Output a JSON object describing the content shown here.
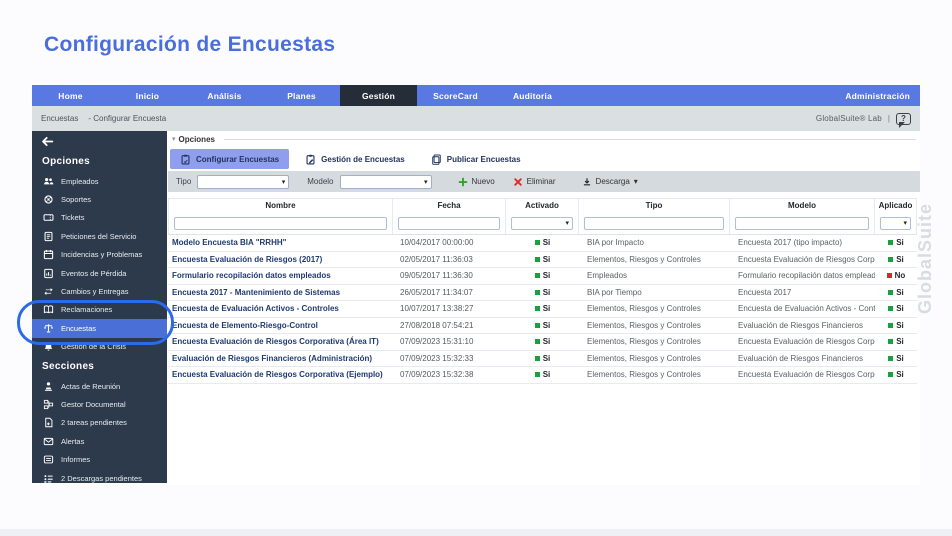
{
  "page_title": "Configuración de Encuestas",
  "colors": {
    "accent": "#4a6edb",
    "nav": "#5a78e2",
    "navActive": "#252d38",
    "sidebar": "#2d3a4b",
    "highlight": "#4a70d8",
    "tabActive": "#8f9fee",
    "toolbar": "#d5dade",
    "crumb": "#dadfe2",
    "green": "#1aa13f",
    "red": "#d42a2a",
    "link": "#1e3a70",
    "ring": "#2b6be8",
    "watermark": "#d9dcdf"
  },
  "nav": {
    "items": [
      {
        "label": "Home"
      },
      {
        "label": "Inicio"
      },
      {
        "label": "Análisis"
      },
      {
        "label": "Planes"
      },
      {
        "label": "Gestión",
        "state": "active"
      },
      {
        "label": "ScoreCard"
      },
      {
        "label": "Auditoria"
      },
      {
        "label": "Administración"
      }
    ]
  },
  "breadcrumb": {
    "section": "Encuestas",
    "current": "- Configurar Encuesta",
    "brand": "GlobalSuite® Lab",
    "separator": "|",
    "help_icon": "help-bubble-icon"
  },
  "sidebar": {
    "back_icon": "back-arrow-icon",
    "sections": [
      {
        "title": "Opciones",
        "items": [
          {
            "label": "Empleados",
            "icon": "people"
          },
          {
            "label": "Soportes",
            "icon": "lifebuoy"
          },
          {
            "label": "Tickets",
            "icon": "ticket"
          },
          {
            "label": "Peticiones del Servicio",
            "icon": "doc-lines"
          },
          {
            "label": "Incidencias y Problemas",
            "icon": "calendar"
          },
          {
            "label": "Eventos de Pérdida",
            "icon": "doc-chart"
          },
          {
            "label": "Cambios y Entregas",
            "icon": "swap-arrows"
          },
          {
            "label": "Reclamaciones",
            "icon": "book"
          },
          {
            "label": "Encuestas",
            "icon": "scales",
            "state": "active"
          },
          {
            "label": "Gestión de la Crisis",
            "icon": "bell"
          }
        ]
      },
      {
        "title": "Secciones",
        "items": [
          {
            "label": "Actas de Reunión",
            "icon": "stamp"
          },
          {
            "label": "Gestor Documental",
            "icon": "doc-tree"
          },
          {
            "label": "2 tareas pendientes",
            "icon": "doc-plus"
          },
          {
            "label": "Alertas",
            "icon": "mail"
          },
          {
            "label": "Informes",
            "icon": "report"
          },
          {
            "label": "2 Descargas pendientes",
            "icon": "dotted-list"
          }
        ]
      }
    ]
  },
  "panel": {
    "title": "Opciones"
  },
  "tabs": [
    {
      "label": "Configurar Encuestas",
      "icon": "clipboard-check",
      "state": "active"
    },
    {
      "label": "Gestión de Encuestas",
      "icon": "clipboard-edit"
    },
    {
      "label": "Publicar Encuestas",
      "icon": "clipboard-copy"
    }
  ],
  "toolbar": {
    "tipo_label": "Tipo",
    "modelo_label": "Modelo",
    "nuevo_label": "Nuevo",
    "eliminar_label": "Eliminar",
    "descarga_label": "Descarga",
    "caret": "▾"
  },
  "table": {
    "columns": [
      "Nombre",
      "Fecha",
      "Activado",
      "Tipo",
      "Modelo",
      "Aplicado"
    ],
    "rows": [
      {
        "nombre": "Modelo Encuesta BIA \"RRHH\"",
        "fecha": "10/04/2017 00:00:00",
        "activado": "Si",
        "activado_state": "ok",
        "tipo": "BIA por Impacto",
        "modelo": "Encuesta 2017 (tipo impacto)",
        "aplicado": "Si",
        "aplicado_state": "ok"
      },
      {
        "nombre": "Encuesta Evaluación de Riesgos (2017)",
        "fecha": "02/05/2017 11:36:03",
        "activado": "Si",
        "activado_state": "ok",
        "tipo": "Elementos, Riesgos y Controles",
        "modelo": "Encuesta Evaluación de Riesgos Corporativa",
        "aplicado": "Si",
        "aplicado_state": "ok"
      },
      {
        "nombre": "Formulario recopilación datos empleados",
        "fecha": "09/05/2017 11:36:30",
        "activado": "Si",
        "activado_state": "ok",
        "tipo": "Empleados",
        "modelo": "Formulario recopilación datos empleados",
        "aplicado": "No",
        "aplicado_state": "no"
      },
      {
        "nombre": "Encuesta 2017 - Mantenimiento de Sistemas",
        "fecha": "26/05/2017 11:34:07",
        "activado": "Si",
        "activado_state": "ok",
        "tipo": "BIA por Tiempo",
        "modelo": "Encuesta 2017",
        "aplicado": "Si",
        "aplicado_state": "ok"
      },
      {
        "nombre": "Encuesta de Evaluación Activos - Controles",
        "fecha": "10/07/2017 13:38:27",
        "activado": "Si",
        "activado_state": "ok",
        "tipo": "Elementos, Riesgos y Controles",
        "modelo": "Encuesta de Evaluación Activos - Controles",
        "aplicado": "Si",
        "aplicado_state": "ok"
      },
      {
        "nombre": "Encuesta de Elemento-Riesgo-Control",
        "fecha": "27/08/2018 07:54:21",
        "activado": "Si",
        "activado_state": "ok",
        "tipo": "Elementos, Riesgos y Controles",
        "modelo": "Evaluación de Riesgos Financieros",
        "aplicado": "Si",
        "aplicado_state": "ok"
      },
      {
        "nombre": "Encuesta Evaluación de Riesgos Corporativa (Área IT)",
        "fecha": "07/09/2023 15:31:10",
        "activado": "Si",
        "activado_state": "ok",
        "tipo": "Elementos, Riesgos y Controles",
        "modelo": "Encuesta Evaluación de Riesgos Corporativa",
        "aplicado": "Si",
        "aplicado_state": "ok"
      },
      {
        "nombre": "Evaluación de Riesgos Financieros (Administración)",
        "fecha": "07/09/2023 15:32:33",
        "activado": "Si",
        "activado_state": "ok",
        "tipo": "Elementos, Riesgos y Controles",
        "modelo": "Evaluación de Riesgos Financieros",
        "aplicado": "Si",
        "aplicado_state": "ok"
      },
      {
        "nombre": "Encuesta Evaluación de Riesgos Corporativa (Ejemplo)",
        "fecha": "07/09/2023 15:32:38",
        "activado": "Si",
        "activado_state": "ok",
        "tipo": "Elementos, Riesgos y Controles",
        "modelo": "Encuesta Evaluación de Riesgos Corporativa",
        "aplicado": "Si",
        "aplicado_state": "ok"
      }
    ]
  },
  "watermark": "GlobalSuite"
}
